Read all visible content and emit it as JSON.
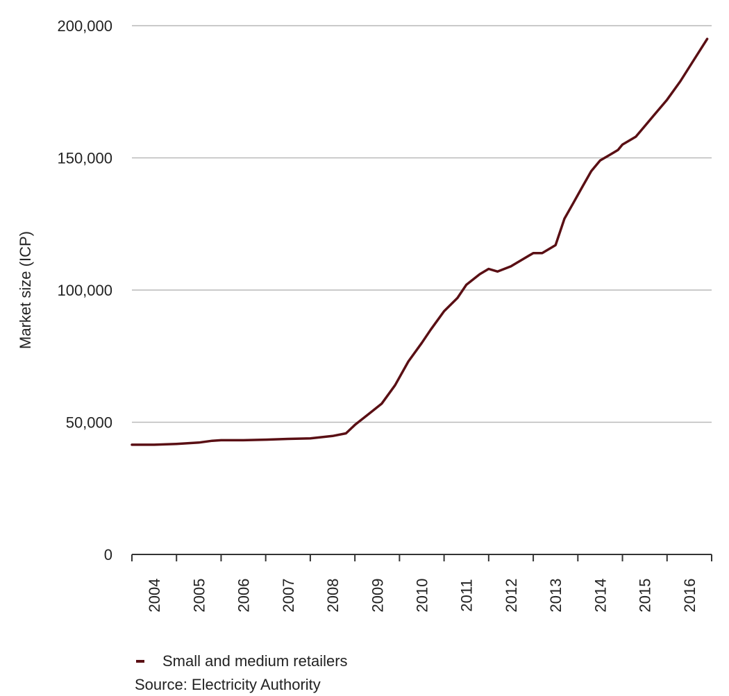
{
  "chart_data": {
    "type": "line",
    "title": "",
    "xlabel": "",
    "ylabel": "Market size (ICP)",
    "ylim": [
      0,
      200000
    ],
    "yticks": [
      0,
      50000,
      100000,
      150000,
      200000
    ],
    "ytick_labels": [
      "0",
      "50,000",
      "100,000",
      "150,000",
      "200,000"
    ],
    "xlim": [
      2004.0,
      2017.0
    ],
    "xtick_labels": [
      "2004",
      "2005",
      "2006",
      "2007",
      "2008",
      "2009",
      "2010",
      "2011",
      "2012",
      "2013",
      "2014",
      "2015",
      "2016"
    ],
    "grid": "horizontal",
    "legend_position": "bottom-left",
    "series": [
      {
        "name": "Small and medium retailers",
        "color": "#5a0f14",
        "x": [
          2004.0,
          2004.5,
          2005.0,
          2005.5,
          2005.8,
          2006.0,
          2006.5,
          2007.0,
          2007.5,
          2008.0,
          2008.5,
          2008.8,
          2009.0,
          2009.3,
          2009.6,
          2009.9,
          2010.2,
          2010.5,
          2010.7,
          2011.0,
          2011.3,
          2011.5,
          2011.8,
          2012.0,
          2012.2,
          2012.5,
          2012.7,
          2013.0,
          2013.2,
          2013.5,
          2013.7,
          2013.9,
          2014.1,
          2014.3,
          2014.5,
          2014.7,
          2014.9,
          2015.0,
          2015.3,
          2015.5,
          2015.7,
          2016.0,
          2016.3,
          2016.6,
          2016.9
        ],
        "values": [
          41500,
          41500,
          41800,
          42300,
          43000,
          43200,
          43200,
          43400,
          43700,
          43900,
          44800,
          45800,
          49000,
          53000,
          57000,
          64000,
          73000,
          80000,
          85000,
          92000,
          97000,
          102000,
          106000,
          108000,
          107000,
          109000,
          111000,
          114000,
          114000,
          117000,
          127000,
          133000,
          139000,
          145000,
          149000,
          151000,
          153000,
          155000,
          158000,
          162000,
          166000,
          172000,
          179000,
          187000,
          195000
        ]
      }
    ]
  },
  "legend": {
    "label": "Small and medium retailers",
    "color": "#5a0f14"
  },
  "source": "Source: Electricity Authority"
}
